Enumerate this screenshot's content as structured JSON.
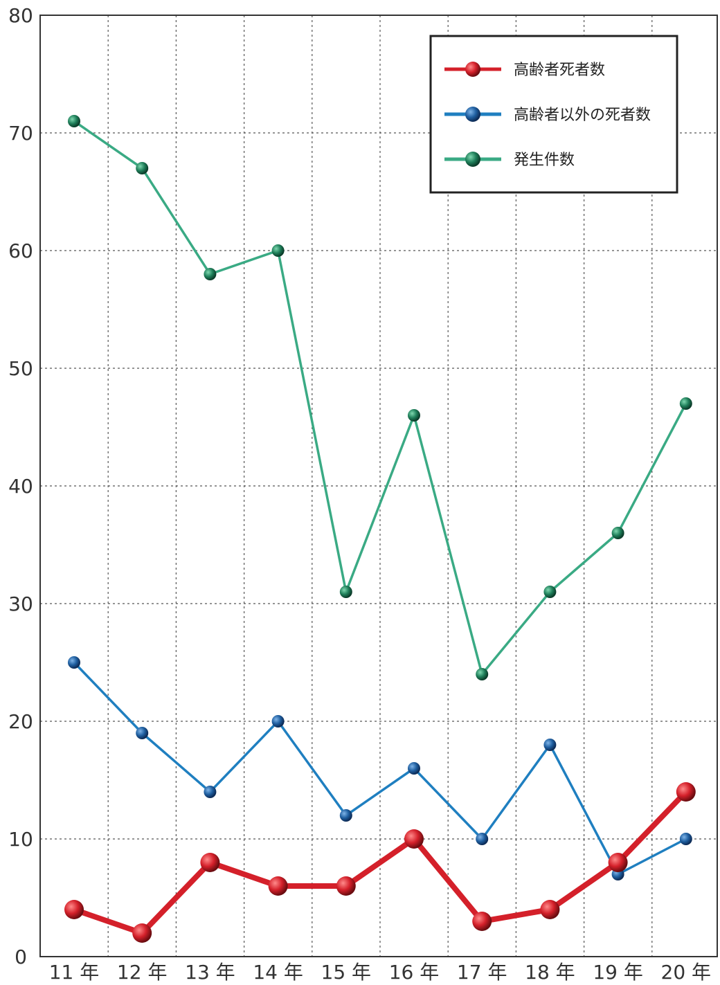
{
  "chart_data": {
    "type": "line",
    "categories": [
      "11 年",
      "12 年",
      "13 年",
      "14 年",
      "15 年",
      "16 年",
      "17 年",
      "18 年",
      "19 年",
      "20 年"
    ],
    "yticks": [
      "0",
      "10",
      "20",
      "30",
      "40",
      "50",
      "60",
      "70",
      "80"
    ],
    "ylim": [
      0,
      80
    ],
    "grid": true,
    "legend_position": "top-right",
    "series": [
      {
        "name": "高齢者死者数",
        "color": "#d4202a",
        "values": [
          4,
          2,
          8,
          6,
          6,
          10,
          3,
          4,
          8,
          14
        ]
      },
      {
        "name": "高齢者以外の死者数",
        "color": "#1f7fc0",
        "values": [
          25,
          19,
          14,
          20,
          12,
          16,
          10,
          18,
          7,
          10
        ]
      },
      {
        "name": "発生件数",
        "color": "#3aaa84",
        "values": [
          71,
          67,
          58,
          60,
          31,
          46,
          24,
          31,
          36,
          47
        ]
      }
    ]
  }
}
